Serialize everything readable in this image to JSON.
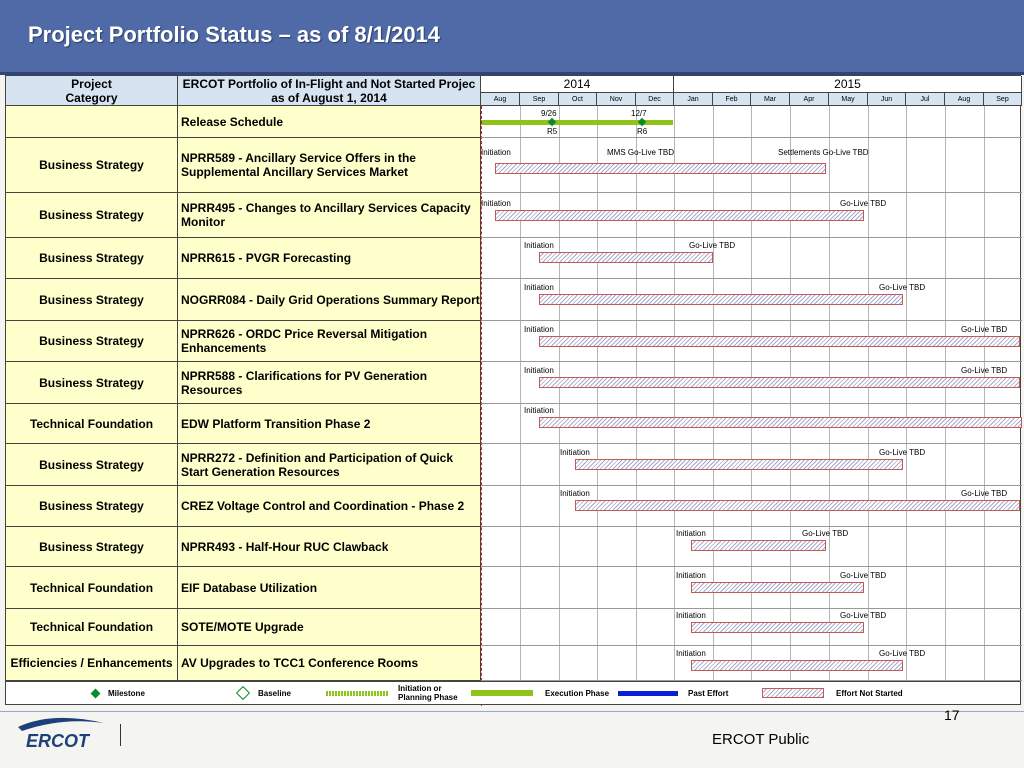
{
  "title": "Project Portfolio Status – as of 8/1/2014",
  "columns": {
    "category_header": "Project\nCategory",
    "description_header": "ERCOT Portfolio of In-Flight and Not Started Projec\nas of August 1, 2014"
  },
  "years": [
    {
      "label": "2014"
    },
    {
      "label": "2015"
    }
  ],
  "months": [
    "Aug",
    "Sep",
    "Oct",
    "Nov",
    "Dec",
    "Jan",
    "Feb",
    "Mar",
    "Apr",
    "May",
    "Jun",
    "Jul",
    "Aug",
    "Sep"
  ],
  "rows": [
    {
      "category": "",
      "description": "Release Schedule"
    },
    {
      "category": "Business Strategy",
      "description": "NPRR589 - Ancillary Service Offers in the Supplemental Ancillary Services Market"
    },
    {
      "category": "Business Strategy",
      "description": "NPRR495 - Changes to Ancillary Services Capacity Monitor"
    },
    {
      "category": "Business Strategy",
      "description": "NPRR615 - PVGR Forecasting"
    },
    {
      "category": "Business Strategy",
      "description": "NOGRR084 - Daily Grid Operations Summary Report"
    },
    {
      "category": "Business Strategy",
      "description": "NPRR626 - ORDC Price Reversal Mitigation Enhancements"
    },
    {
      "category": "Business Strategy",
      "description": "NPRR588 - Clarifications for PV Generation Resources"
    },
    {
      "category": "Technical Foundation",
      "description": "EDW Platform Transition Phase 2"
    },
    {
      "category": "Business Strategy",
      "description": "NPRR272 - Definition and Participation of Quick Start Generation Resources"
    },
    {
      "category": "Business Strategy",
      "description": "CREZ Voltage Control and Coordination - Phase 2"
    },
    {
      "category": "Business Strategy",
      "description": "NPRR493 - Half-Hour RUC Clawback"
    },
    {
      "category": "Technical Foundation",
      "description": "EIF Database Utilization"
    },
    {
      "category": "Technical Foundation",
      "description": "SOTE/MOTE Upgrade"
    },
    {
      "category": "Efficiencies / Enhancements",
      "description": "AV Upgrades to TCC1 Conference Rooms"
    }
  ],
  "release_schedule": {
    "dates": [
      "9/26",
      "12/7"
    ],
    "releases": [
      "R5",
      "R6"
    ]
  },
  "gantt_labels": {
    "initiation": "Initiation",
    "go_live": "Go-Live TBD",
    "mms_go_live": "MMS Go-Live TBD",
    "settlements_go_live": "Settlements Go-Live TBD"
  },
  "legend": {
    "milestone": "Milestone",
    "baseline": "Baseline",
    "initiation": "Initiation or Planning Phase",
    "execution": "Execution Phase",
    "past_effort": "Past Effort",
    "not_started": "Effort Not Started"
  },
  "colors": {
    "header_band": "#4f6aa6",
    "table_header": "#d6e4f2",
    "row_fill": "#ffffcc",
    "execution": "#8fc21a",
    "past_effort": "#0a1fd6",
    "milestone": "#0a8a2a"
  },
  "footer": {
    "page_number": "17",
    "label": "ERCOT Public",
    "logo": "ERCOT"
  }
}
